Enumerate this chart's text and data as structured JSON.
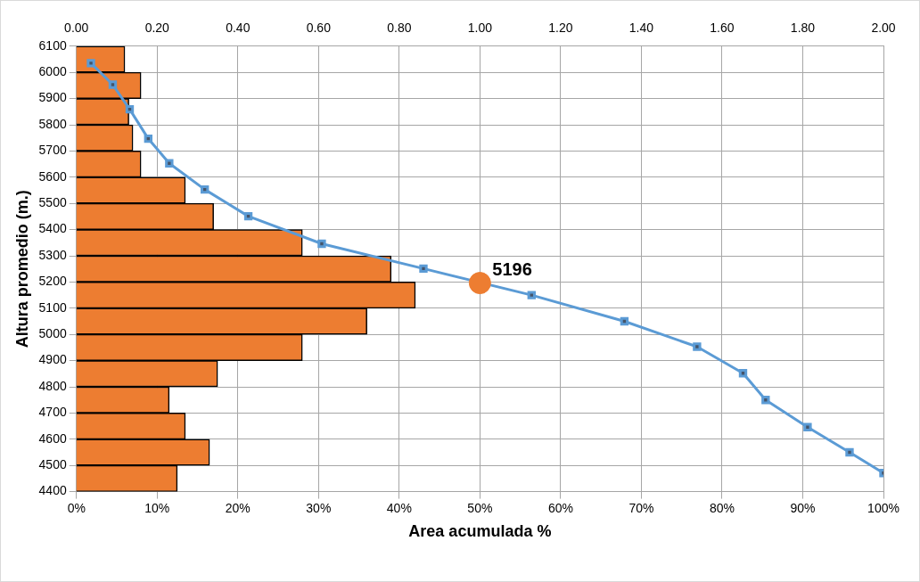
{
  "chart_data": {
    "type": "bar",
    "orientation": "horizontal",
    "xlabel": "Area acumulada %",
    "ylabel": "Altura promedio (m.)",
    "xlim": [
      0,
      100
    ],
    "xticks": [
      {
        "value": 0,
        "label": "0%"
      },
      {
        "value": 10,
        "label": "10%"
      },
      {
        "value": 20,
        "label": "20%"
      },
      {
        "value": 30,
        "label": "30%"
      },
      {
        "value": 40,
        "label": "40%"
      },
      {
        "value": 50,
        "label": "50%"
      },
      {
        "value": 60,
        "label": "60%"
      },
      {
        "value": 70,
        "label": "70%"
      },
      {
        "value": 80,
        "label": "80%"
      },
      {
        "value": 90,
        "label": "90%"
      },
      {
        "value": 100,
        "label": "100%"
      }
    ],
    "x2lim": [
      0,
      2
    ],
    "x2ticks": [
      {
        "value": 0,
        "label": "0.00"
      },
      {
        "value": 0.2,
        "label": "0.20"
      },
      {
        "value": 0.4,
        "label": "0.40"
      },
      {
        "value": 0.6,
        "label": "0.60"
      },
      {
        "value": 0.8,
        "label": "0.80"
      },
      {
        "value": 1,
        "label": "1.00"
      },
      {
        "value": 1.2,
        "label": "1.20"
      },
      {
        "value": 1.4,
        "label": "1.40"
      },
      {
        "value": 1.6,
        "label": "1.60"
      },
      {
        "value": 1.8,
        "label": "1.80"
      },
      {
        "value": 2,
        "label": "2.00"
      }
    ],
    "ylim": [
      4400,
      6100
    ],
    "yticks": [
      4400,
      4500,
      4600,
      4700,
      4800,
      4900,
      5000,
      5100,
      5200,
      5300,
      5400,
      5500,
      5600,
      5700,
      5800,
      5900,
      6000,
      6100
    ],
    "grid": true,
    "series": [
      {
        "axis": "x2",
        "color": "#ed7d31",
        "x": [
          4450,
          4550,
          4650,
          4750,
          4850,
          4950,
          5050,
          5150,
          5250,
          5350,
          5450,
          5550,
          5650,
          5750,
          5850,
          5950,
          6050
        ],
        "values": [
          0.25,
          0.33,
          0.27,
          0.23,
          0.35,
          0.56,
          0.72,
          0.84,
          0.78,
          0.56,
          0.34,
          0.27,
          0.16,
          0.14,
          0.13,
          0.16,
          0.12
        ]
      },
      {
        "type": "line",
        "color": "#5b9bd5",
        "marker": "square",
        "x": [
          6035,
          5953,
          5859,
          5747,
          5653,
          5553,
          5451,
          5346,
          5251,
          5150,
          5050,
          4953,
          4852,
          4750,
          4646,
          4550,
          4471
        ],
        "values": [
          1.8,
          4.5,
          6.6,
          8.9,
          11.5,
          15.9,
          21.3,
          30.4,
          43.0,
          56.4,
          67.9,
          76.9,
          82.6,
          85.4,
          90.6,
          95.8,
          100
        ]
      },
      {
        "type": "scatter",
        "color": "#ed7d31",
        "marker": "circle",
        "x": [
          5196
        ],
        "values": [
          50
        ]
      }
    ],
    "annotations": [
      {
        "text": "5196",
        "x": 50,
        "y": 5196
      }
    ]
  }
}
